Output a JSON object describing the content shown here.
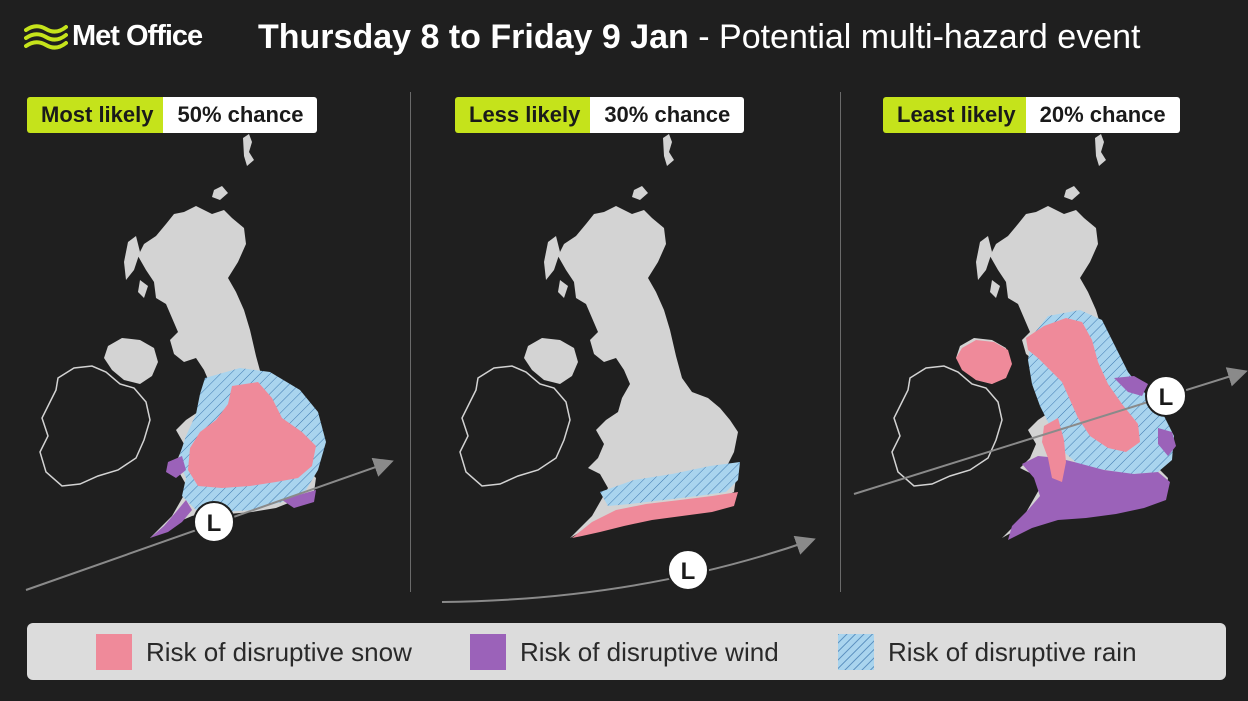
{
  "header": {
    "brand": "Met Office",
    "title_bold": "Thursday 8 to Friday 9 Jan",
    "title_light": "- Potential multi-hazard event"
  },
  "colors": {
    "background": "#1f1f1f",
    "land": "#d3d3d3",
    "likelihood_badge": "#c5e31b",
    "snow": "#ef8a9a",
    "wind": "#9b62b9",
    "rain": "#a9d4ee",
    "low_track": "#8a8a8a"
  },
  "panels": [
    {
      "likelihood": "Most likely",
      "chance": "50% chance",
      "low_label": "L"
    },
    {
      "likelihood": "Less likely",
      "chance": "30% chance",
      "low_label": "L"
    },
    {
      "likelihood": "Least likely",
      "chance": "20% chance",
      "low_label": "L"
    }
  ],
  "legend": [
    {
      "label": "Risk of disruptive snow",
      "hazard": "snow"
    },
    {
      "label": "Risk of disruptive wind",
      "hazard": "wind"
    },
    {
      "label": "Risk of disruptive rain",
      "hazard": "rain"
    }
  ]
}
